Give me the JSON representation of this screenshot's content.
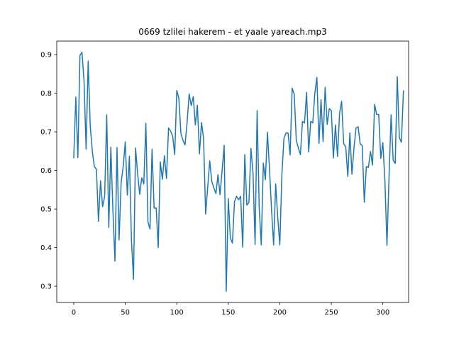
{
  "chart_data": {
    "type": "line",
    "title": "0669 tzlilei hakerem - et yaale yareach.mp3",
    "xlabel": "",
    "ylabel": "",
    "xlim": [
      -16.5,
      325
    ],
    "ylim": [
      0.258,
      0.935
    ],
    "x_ticks": [
      0,
      50,
      100,
      150,
      200,
      250,
      300
    ],
    "y_ticks": [
      0.3,
      0.4,
      0.5,
      0.6,
      0.7,
      0.8,
      0.9
    ],
    "x_step": 2,
    "grid": false,
    "legend": "none",
    "series": [
      {
        "color": "#1f77b4",
        "values": [
          0.633,
          0.79,
          0.633,
          0.898,
          0.906,
          0.83,
          0.655,
          0.883,
          0.715,
          0.65,
          0.61,
          0.603,
          0.468,
          0.573,
          0.506,
          0.533,
          0.744,
          0.452,
          0.66,
          0.496,
          0.365,
          0.659,
          0.42,
          0.569,
          0.61,
          0.674,
          0.536,
          0.637,
          0.419,
          0.318,
          0.658,
          0.592,
          0.538,
          0.581,
          0.565,
          0.722,
          0.467,
          0.448,
          0.655,
          0.502,
          0.503,
          0.4,
          0.622,
          0.577,
          0.638,
          0.579,
          0.71,
          0.702,
          0.689,
          0.641,
          0.807,
          0.787,
          0.695,
          0.678,
          0.666,
          0.724,
          0.798,
          0.768,
          0.791,
          0.718,
          0.769,
          0.643,
          0.724,
          0.683,
          0.487,
          0.556,
          0.625,
          0.571,
          0.555,
          0.54,
          0.589,
          0.537,
          0.6,
          0.665,
          0.287,
          0.527,
          0.425,
          0.412,
          0.519,
          0.533,
          0.524,
          0.533,
          0.401,
          0.641,
          0.51,
          0.517,
          0.657,
          0.593,
          0.408,
          0.755,
          0.503,
          0.407,
          0.619,
          0.576,
          0.699,
          0.603,
          0.497,
          0.407,
          0.565,
          0.478,
          0.407,
          0.588,
          0.683,
          0.697,
          0.697,
          0.64,
          0.813,
          0.797,
          0.678,
          0.658,
          0.641,
          0.727,
          0.723,
          0.802,
          0.648,
          0.727,
          0.723,
          0.8,
          0.841,
          0.67,
          0.783,
          0.675,
          0.815,
          0.719,
          0.76,
          0.755,
          0.632,
          0.718,
          0.636,
          0.748,
          0.779,
          0.669,
          0.661,
          0.584,
          0.697,
          0.59,
          0.658,
          0.71,
          0.713,
          0.669,
          0.664,
          0.518,
          0.61,
          0.608,
          0.649,
          0.614,
          0.771,
          0.745,
          0.745,
          0.631,
          0.672,
          0.573,
          0.406,
          0.582,
          0.744,
          0.627,
          0.618,
          0.843,
          0.685,
          0.673,
          0.806
        ]
      }
    ]
  }
}
